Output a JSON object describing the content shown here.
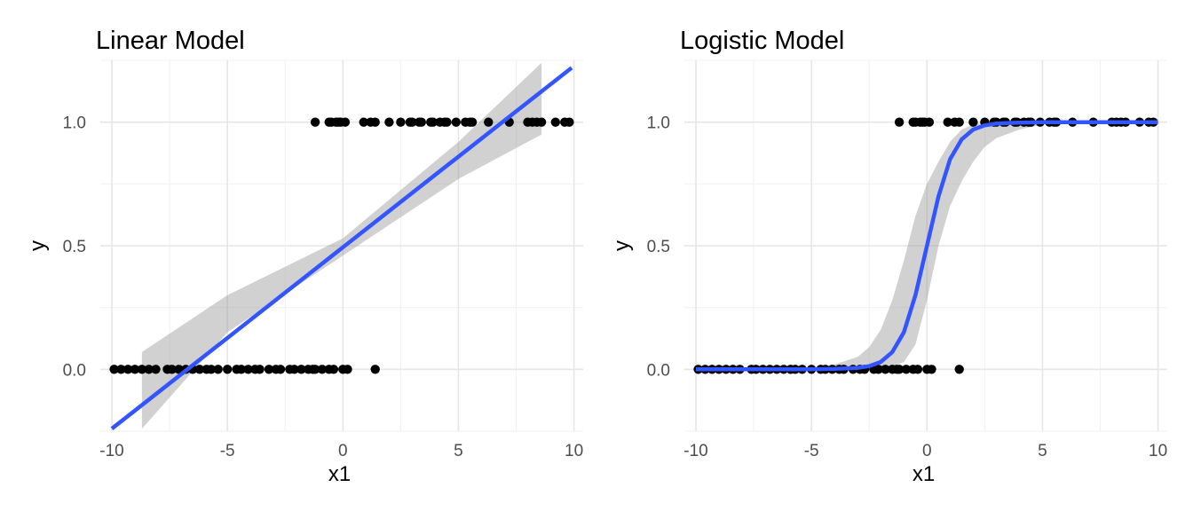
{
  "chart_data": [
    {
      "type": "scatter",
      "title": "Linear Model",
      "xlabel": "x1",
      "ylabel": "y",
      "xlim": [
        -10.5,
        10.4
      ],
      "ylim": [
        -0.25,
        1.25
      ],
      "xticks": [
        -10,
        -5,
        0,
        5,
        10
      ],
      "xtick_labels": [
        "-10",
        "-5",
        "0",
        "5",
        "10"
      ],
      "yticks": [
        0.0,
        0.5,
        1.0
      ],
      "ytick_labels": [
        "0.0",
        "0.5",
        "1.0"
      ],
      "grid": true,
      "points": {
        "x": [
          -9.9,
          -9.6,
          -9.3,
          -9.0,
          -8.7,
          -8.4,
          -8.1,
          -7.6,
          -7.4,
          -7.1,
          -6.8,
          -6.5,
          -6.2,
          -5.9,
          -5.7,
          -5.4,
          -5.0,
          -4.6,
          -4.4,
          -4.1,
          -3.8,
          -3.6,
          -3.2,
          -2.9,
          -2.7,
          -2.3,
          -2.1,
          -1.8,
          -1.5,
          -1.3,
          -1.2,
          -0.9,
          -0.6,
          -0.4,
          0.0,
          0.2,
          1.4,
          -1.2,
          -0.6,
          -0.5,
          -0.3,
          -0.2,
          -0.1,
          0.1,
          0.9,
          1.2,
          1.4,
          2.0,
          2.5,
          2.9,
          3.0,
          3.3,
          3.4,
          3.8,
          3.9,
          4.2,
          4.4,
          4.5,
          4.9,
          5.3,
          5.5,
          5.6,
          6.3,
          7.2,
          8.0,
          8.2,
          8.4,
          8.6,
          9.2,
          9.6,
          9.8
        ],
        "y": [
          0,
          0,
          0,
          0,
          0,
          0,
          0,
          0,
          0,
          0,
          0,
          0,
          0,
          0,
          0,
          0,
          0,
          0,
          0,
          0,
          0,
          0,
          0,
          0,
          0,
          0,
          0,
          0,
          0,
          0,
          0,
          0,
          0,
          0,
          0,
          0,
          0,
          1,
          1,
          1,
          1,
          1,
          1,
          1,
          1,
          1,
          1,
          1,
          1,
          1,
          1,
          1,
          1,
          1,
          1,
          1,
          1,
          1,
          1,
          1,
          1,
          1,
          1,
          1,
          1,
          1,
          1,
          1,
          1,
          1,
          1
        ]
      },
      "fit": {
        "x": [
          -10.0,
          9.9
        ],
        "y": [
          -0.24,
          1.22
        ]
      },
      "ci_band": {
        "x": [
          -8.7,
          -5.0,
          0.0,
          5.0,
          8.6
        ],
        "lower": [
          -0.24,
          0.15,
          0.46,
          0.77,
          0.95
        ],
        "upper": [
          0.07,
          0.3,
          0.53,
          0.92,
          1.24
        ]
      }
    },
    {
      "type": "scatter",
      "title": "Logistic Model",
      "xlabel": "x1",
      "ylabel": "y",
      "xlim": [
        -10.5,
        10.4
      ],
      "ylim": [
        -0.25,
        1.25
      ],
      "xticks": [
        -10,
        -5,
        0,
        5,
        10
      ],
      "xtick_labels": [
        "-10",
        "-5",
        "0",
        "5",
        "10"
      ],
      "yticks": [
        0.0,
        0.5,
        1.0
      ],
      "ytick_labels": [
        "0.0",
        "0.5",
        "1.0"
      ],
      "grid": true,
      "points": {
        "x": [
          -9.9,
          -9.6,
          -9.3,
          -9.0,
          -8.7,
          -8.4,
          -8.1,
          -7.6,
          -7.4,
          -7.1,
          -6.8,
          -6.5,
          -6.2,
          -5.9,
          -5.7,
          -5.4,
          -5.0,
          -4.6,
          -4.4,
          -4.1,
          -3.8,
          -3.6,
          -3.2,
          -2.9,
          -2.7,
          -2.3,
          -2.1,
          -1.8,
          -1.5,
          -1.3,
          -1.2,
          -0.9,
          -0.6,
          -0.4,
          0.0,
          0.2,
          1.4,
          -1.2,
          -0.6,
          -0.5,
          -0.3,
          -0.2,
          -0.1,
          0.1,
          0.9,
          1.2,
          1.4,
          2.0,
          2.5,
          2.9,
          3.0,
          3.3,
          3.4,
          3.8,
          3.9,
          4.2,
          4.4,
          4.5,
          4.9,
          5.3,
          5.5,
          5.6,
          6.3,
          7.2,
          8.0,
          8.2,
          8.4,
          8.6,
          9.2,
          9.6,
          9.8
        ],
        "y": [
          0,
          0,
          0,
          0,
          0,
          0,
          0,
          0,
          0,
          0,
          0,
          0,
          0,
          0,
          0,
          0,
          0,
          0,
          0,
          0,
          0,
          0,
          0,
          0,
          0,
          0,
          0,
          0,
          0,
          0,
          0,
          0,
          0,
          0,
          0,
          0,
          0,
          1,
          1,
          1,
          1,
          1,
          1,
          1,
          1,
          1,
          1,
          1,
          1,
          1,
          1,
          1,
          1,
          1,
          1,
          1,
          1,
          1,
          1,
          1,
          1,
          1,
          1,
          1,
          1,
          1,
          1,
          1,
          1,
          1,
          1
        ]
      },
      "fit": {
        "x": [
          -10.0,
          -5.0,
          -4.0,
          -3.0,
          -2.5,
          -2.0,
          -1.5,
          -1.0,
          -0.5,
          0.0,
          0.5,
          1.0,
          1.5,
          2.0,
          2.5,
          3.0,
          4.0,
          5.0,
          10.0
        ],
        "y": [
          0.0,
          0.0,
          0.002,
          0.006,
          0.013,
          0.03,
          0.07,
          0.15,
          0.3,
          0.5,
          0.7,
          0.85,
          0.93,
          0.97,
          0.987,
          0.994,
          0.998,
          1.0,
          1.0
        ]
      },
      "ci_band": {
        "x": [
          -10.0,
          -5.0,
          -4.0,
          -3.0,
          -2.5,
          -2.0,
          -1.5,
          -1.0,
          -0.5,
          0.0,
          0.5,
          1.0,
          1.5,
          2.0,
          2.5,
          3.0,
          4.0,
          5.0,
          6.0,
          10.0
        ],
        "lower": [
          0.0,
          0.0,
          0.0,
          0.0,
          0.001,
          0.003,
          0.01,
          0.03,
          0.1,
          0.28,
          0.5,
          0.66,
          0.76,
          0.84,
          0.9,
          0.935,
          0.97,
          0.99,
          0.998,
          1.0
        ],
        "upper": [
          0.0,
          0.004,
          0.02,
          0.05,
          0.09,
          0.16,
          0.28,
          0.44,
          0.62,
          0.75,
          0.84,
          0.92,
          0.97,
          0.99,
          0.998,
          1.0,
          1.0,
          1.0,
          1.0,
          1.0
        ]
      }
    }
  ]
}
